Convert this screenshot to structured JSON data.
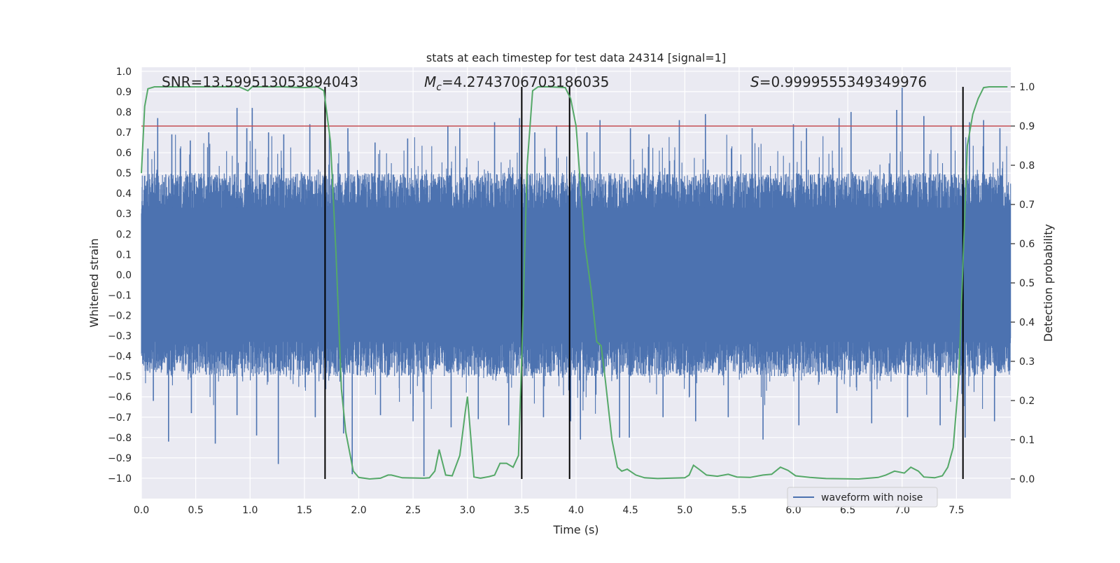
{
  "chart_data": {
    "type": "line",
    "title": "stats at each timestep for test data 24314 [signal=1]",
    "xlabel": "Time (s)",
    "ylabel": "Whitened strain",
    "y2label": "Detection probability",
    "xlim": [
      0.0,
      8.0
    ],
    "ylim": [
      -1.1,
      1.02
    ],
    "y2lim": [
      -0.05,
      1.05
    ],
    "x_ticks": [
      "0.0",
      "0.5",
      "1.0",
      "1.5",
      "2.0",
      "2.5",
      "3.0",
      "3.5",
      "4.0",
      "4.5",
      "5.0",
      "5.5",
      "6.0",
      "6.5",
      "7.0",
      "7.5"
    ],
    "y_ticks": [
      "1.0",
      "0.9",
      "0.8",
      "0.7",
      "0.6",
      "0.5",
      "0.4",
      "0.3",
      "0.2",
      "0.1",
      "0.0",
      "−0.1",
      "−0.2",
      "−0.3",
      "−0.4",
      "−0.5",
      "−0.6",
      "−0.7",
      "−0.8",
      "−0.9",
      "−1.0"
    ],
    "y2_ticks": [
      "1.0",
      "0.9",
      "0.8",
      "0.7",
      "0.6",
      "0.5",
      "0.4",
      "0.3",
      "0.2",
      "0.1",
      "0.0"
    ],
    "grid": true,
    "legend": {
      "placement": "lower-right",
      "entries": [
        "waveform with noise"
      ]
    },
    "annotations": {
      "snr": "SNR=13.599513053894043",
      "mc": "=4.2743706703186035",
      "mc_sym": "M",
      "mc_sub": "c",
      "s": "=0.9999555349349976",
      "s_sym": "S"
    },
    "threshold": {
      "axis": "right",
      "value": 0.9,
      "color": "#c44e52"
    },
    "vertical_lines": [
      1.69,
      3.5,
      3.94,
      7.56
    ],
    "series": [
      {
        "name": "waveform with noise",
        "color": "#4c72b0",
        "axis": "left",
        "style": "dense-noise",
        "typical_range": [
          -0.45,
          0.45
        ],
        "spikes": [
          {
            "x": 0.06,
            "y": 0.62
          },
          {
            "x": 0.15,
            "y": 0.77
          },
          {
            "x": 0.28,
            "y": 0.69
          },
          {
            "x": 0.45,
            "y": 0.66
          },
          {
            "x": 0.62,
            "y": 0.7
          },
          {
            "x": 0.88,
            "y": 0.82
          },
          {
            "x": 0.97,
            "y": 0.72
          },
          {
            "x": 1.02,
            "y": 0.82
          },
          {
            "x": 1.17,
            "y": 0.7
          },
          {
            "x": 1.31,
            "y": 0.69
          },
          {
            "x": 1.55,
            "y": 0.74
          },
          {
            "x": 1.73,
            "y": 0.7
          },
          {
            "x": 1.9,
            "y": 0.72
          },
          {
            "x": 2.15,
            "y": 0.65
          },
          {
            "x": 2.45,
            "y": 0.67
          },
          {
            "x": 2.82,
            "y": 0.73
          },
          {
            "x": 2.93,
            "y": 0.72
          },
          {
            "x": 3.25,
            "y": 0.75
          },
          {
            "x": 3.48,
            "y": 0.77
          },
          {
            "x": 3.62,
            "y": 0.7
          },
          {
            "x": 3.82,
            "y": 0.73
          },
          {
            "x": 4.1,
            "y": 0.7
          },
          {
            "x": 4.22,
            "y": 0.76
          },
          {
            "x": 4.5,
            "y": 0.72
          },
          {
            "x": 4.67,
            "y": 0.69
          },
          {
            "x": 4.95,
            "y": 0.76
          },
          {
            "x": 5.19,
            "y": 0.79
          },
          {
            "x": 5.62,
            "y": 0.72
          },
          {
            "x": 6.0,
            "y": 0.74
          },
          {
            "x": 6.12,
            "y": 0.72
          },
          {
            "x": 6.42,
            "y": 0.77
          },
          {
            "x": 6.53,
            "y": 0.8
          },
          {
            "x": 6.95,
            "y": 0.81
          },
          {
            "x": 7.0,
            "y": 0.92
          },
          {
            "x": 7.2,
            "y": 0.78
          },
          {
            "x": 7.45,
            "y": 0.73
          },
          {
            "x": 7.62,
            "y": 0.75
          },
          {
            "x": 7.75,
            "y": 0.76
          },
          {
            "x": 7.9,
            "y": 0.72
          },
          {
            "x": 0.11,
            "y": -0.62
          },
          {
            "x": 0.25,
            "y": -0.82
          },
          {
            "x": 0.46,
            "y": -0.68
          },
          {
            "x": 0.68,
            "y": -0.83
          },
          {
            "x": 0.88,
            "y": -0.69
          },
          {
            "x": 1.06,
            "y": -0.79
          },
          {
            "x": 1.26,
            "y": -0.93
          },
          {
            "x": 1.6,
            "y": -0.7
          },
          {
            "x": 1.86,
            "y": -0.78
          },
          {
            "x": 1.94,
            "y": -0.98
          },
          {
            "x": 2.2,
            "y": -0.69
          },
          {
            "x": 2.5,
            "y": -0.72
          },
          {
            "x": 2.6,
            "y": -0.99
          },
          {
            "x": 2.85,
            "y": -0.75
          },
          {
            "x": 3.1,
            "y": -0.71
          },
          {
            "x": 3.38,
            "y": -0.74
          },
          {
            "x": 3.7,
            "y": -0.7
          },
          {
            "x": 3.95,
            "y": -0.72
          },
          {
            "x": 4.04,
            "y": -0.81
          },
          {
            "x": 4.4,
            "y": -0.8
          },
          {
            "x": 4.49,
            "y": -0.8
          },
          {
            "x": 4.8,
            "y": -0.7
          },
          {
            "x": 5.1,
            "y": -0.72
          },
          {
            "x": 5.4,
            "y": -0.7
          },
          {
            "x": 5.72,
            "y": -0.81
          },
          {
            "x": 6.05,
            "y": -0.74
          },
          {
            "x": 6.4,
            "y": -0.68
          },
          {
            "x": 6.72,
            "y": -0.73
          },
          {
            "x": 7.05,
            "y": -0.7
          },
          {
            "x": 7.35,
            "y": -0.74
          },
          {
            "x": 7.58,
            "y": -0.8
          },
          {
            "x": 7.85,
            "y": -0.72
          }
        ]
      },
      {
        "name": "",
        "color": "#55a868",
        "axis": "right",
        "points": [
          [
            0.0,
            0.78
          ],
          [
            0.03,
            0.95
          ],
          [
            0.06,
            0.995
          ],
          [
            0.12,
            1.0
          ],
          [
            0.3,
            1.0
          ],
          [
            0.6,
            1.0
          ],
          [
            0.9,
            1.0
          ],
          [
            0.98,
            0.99
          ],
          [
            1.02,
            1.0
          ],
          [
            1.1,
            1.0
          ],
          [
            1.3,
            1.0
          ],
          [
            1.5,
            0.998
          ],
          [
            1.62,
            1.0
          ],
          [
            1.68,
            0.99
          ],
          [
            1.74,
            0.86
          ],
          [
            1.79,
            0.58
          ],
          [
            1.84,
            0.23
          ],
          [
            1.88,
            0.12
          ],
          [
            1.95,
            0.02
          ],
          [
            2.0,
            0.004
          ],
          [
            2.1,
            0.0
          ],
          [
            2.2,
            0.002
          ],
          [
            2.27,
            0.01
          ],
          [
            2.3,
            0.01
          ],
          [
            2.4,
            0.003
          ],
          [
            2.6,
            0.002
          ],
          [
            2.65,
            0.003
          ],
          [
            2.7,
            0.02
          ],
          [
            2.74,
            0.075
          ],
          [
            2.8,
            0.01
          ],
          [
            2.86,
            0.008
          ],
          [
            2.93,
            0.06
          ],
          [
            2.98,
            0.17
          ],
          [
            3.0,
            0.21
          ],
          [
            3.03,
            0.11
          ],
          [
            3.06,
            0.005
          ],
          [
            3.12,
            0.002
          ],
          [
            3.2,
            0.006
          ],
          [
            3.25,
            0.01
          ],
          [
            3.3,
            0.04
          ],
          [
            3.36,
            0.04
          ],
          [
            3.42,
            0.03
          ],
          [
            3.47,
            0.06
          ],
          [
            3.5,
            0.31
          ],
          [
            3.55,
            0.8
          ],
          [
            3.6,
            0.99
          ],
          [
            3.65,
            1.0
          ],
          [
            3.75,
            1.0
          ],
          [
            3.85,
            0.999
          ],
          [
            3.9,
            0.998
          ],
          [
            3.95,
            0.97
          ],
          [
            4.0,
            0.9
          ],
          [
            4.04,
            0.75
          ],
          [
            4.08,
            0.6
          ],
          [
            4.14,
            0.48
          ],
          [
            4.19,
            0.35
          ],
          [
            4.23,
            0.34
          ],
          [
            4.27,
            0.25
          ],
          [
            4.33,
            0.1
          ],
          [
            4.38,
            0.03
          ],
          [
            4.42,
            0.02
          ],
          [
            4.47,
            0.025
          ],
          [
            4.55,
            0.01
          ],
          [
            4.63,
            0.003
          ],
          [
            4.75,
            0.001
          ],
          [
            5.0,
            0.003
          ],
          [
            5.04,
            0.01
          ],
          [
            5.08,
            0.035
          ],
          [
            5.13,
            0.025
          ],
          [
            5.2,
            0.01
          ],
          [
            5.3,
            0.007
          ],
          [
            5.4,
            0.012
          ],
          [
            5.48,
            0.005
          ],
          [
            5.6,
            0.004
          ],
          [
            5.72,
            0.01
          ],
          [
            5.8,
            0.012
          ],
          [
            5.88,
            0.03
          ],
          [
            5.95,
            0.022
          ],
          [
            6.02,
            0.008
          ],
          [
            6.15,
            0.004
          ],
          [
            6.3,
            0.001
          ],
          [
            6.6,
            0.0
          ],
          [
            6.78,
            0.004
          ],
          [
            6.85,
            0.01
          ],
          [
            6.93,
            0.02
          ],
          [
            7.02,
            0.015
          ],
          [
            7.08,
            0.03
          ],
          [
            7.15,
            0.02
          ],
          [
            7.2,
            0.005
          ],
          [
            7.3,
            0.003
          ],
          [
            7.37,
            0.008
          ],
          [
            7.42,
            0.03
          ],
          [
            7.47,
            0.08
          ],
          [
            7.52,
            0.25
          ],
          [
            7.56,
            0.55
          ],
          [
            7.6,
            0.85
          ],
          [
            7.65,
            0.93
          ],
          [
            7.7,
            0.97
          ],
          [
            7.75,
            0.998
          ],
          [
            7.8,
            1.0
          ],
          [
            7.97,
            1.0
          ]
        ]
      }
    ]
  }
}
